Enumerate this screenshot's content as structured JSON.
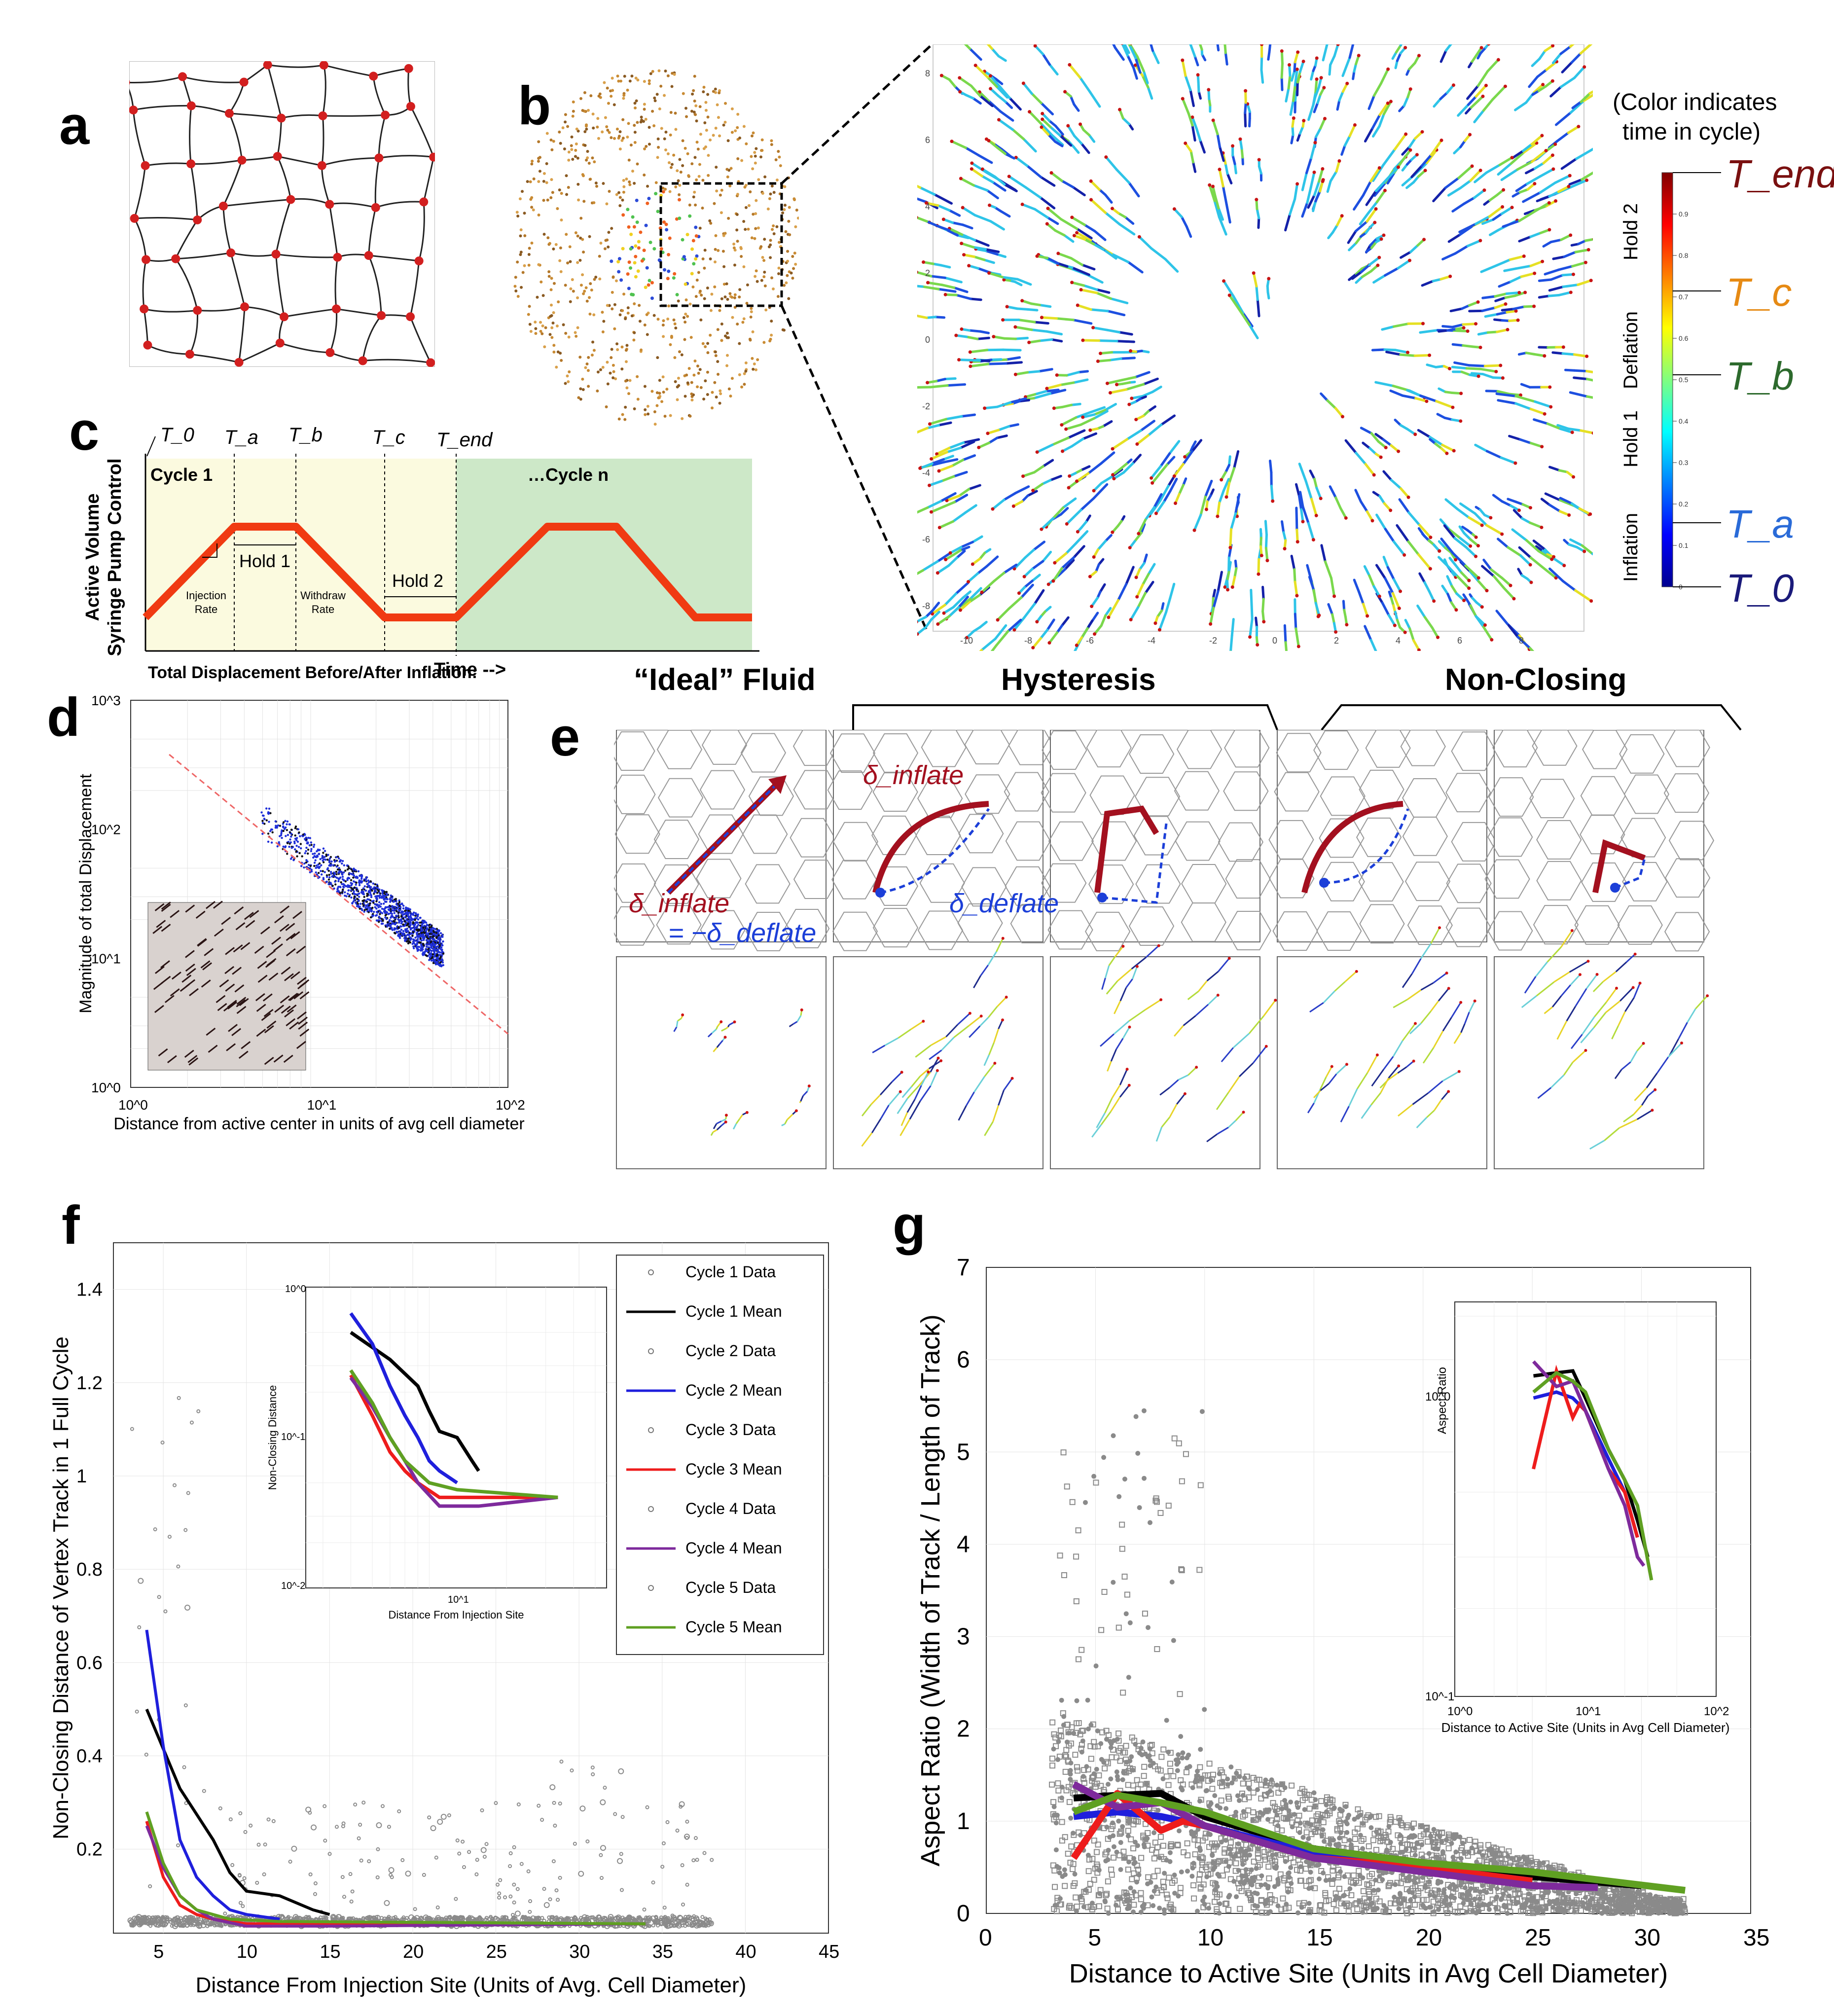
{
  "labels": {
    "a": "a",
    "b": "b",
    "c": "c",
    "d": "d",
    "e": "e",
    "f": "f",
    "g": "g"
  },
  "colors": {
    "cell_edge": "#333333",
    "vertex": "#d21f1f",
    "pump": "#f03a12",
    "green_bg": "#cde8c8",
    "yellow_bg": "#fbfadf",
    "arrow_red": "#a3101f",
    "arrow_blue": "#1c3fd8",
    "gray_pts": "#8a8a8a",
    "black": "#000000",
    "blue": "#1f1fdc",
    "red": "#ee1c1c",
    "purple": "#7e2a9c",
    "green": "#5fa022"
  },
  "panel_b": {
    "note_line1": "(Color indicates",
    "note_line2": "time in cycle)",
    "phase_labels": [
      "Hold 2",
      "Deflation",
      "Hold 1",
      "Inflation"
    ],
    "time_labels": [
      "T_end",
      "T_c",
      "T_b",
      "T_a",
      "T_0"
    ],
    "colorbar_ticks": [
      "0",
      "0.1",
      "0.2",
      "0.3",
      "0.4",
      "0.5",
      "0.6",
      "0.7",
      "0.8",
      "0.9"
    ],
    "x_ticks": [
      "-10",
      "-8",
      "-6",
      "-4",
      "-2",
      "0",
      "2",
      "4",
      "6",
      "8"
    ],
    "y_ticks": [
      "8",
      "6",
      "4",
      "2",
      "0",
      "-2",
      "-4",
      "-6",
      "-8"
    ]
  },
  "panel_c": {
    "time_markers": [
      "T_0",
      "T_a",
      "T_b",
      "T_c",
      "T_end"
    ],
    "cycle1": "Cycle 1",
    "cyclen": "…Cycle n",
    "hold1": "Hold 1",
    "hold2": "Hold 2",
    "injection": [
      "Injection",
      "Rate"
    ],
    "withdraw": [
      "Withdraw",
      "Rate"
    ],
    "ylabel1": "Active Volume",
    "ylabel2": "Syringe Pump Control",
    "xlabel": "Time -->",
    "d_title": "Total Displacement Before/After Inflation:"
  },
  "panel_d": {
    "chart_data": {
      "type": "scatter",
      "ylabel": "Magnitude of total Displacement",
      "xlabel": "Distance from active center in units of avg cell diameter",
      "x_scale": "log",
      "y_scale": "log",
      "xlim": [
        1,
        100
      ],
      "ylim": [
        1,
        1000
      ],
      "x_ticks": [
        "10^0",
        "10^1",
        "10^2"
      ],
      "y_ticks": [
        "10^0",
        "10^1",
        "10^2",
        "10^3"
      ],
      "fit_line": [
        [
          1.6,
          380
        ],
        [
          100,
          2.6
        ]
      ],
      "cloud": [
        [
          6,
          120
        ],
        [
          10,
          70
        ],
        [
          20,
          35
        ],
        [
          40,
          12
        ]
      ]
    }
  },
  "panel_e": {
    "titles": [
      "“Ideal” Fluid",
      "Hysteresis",
      "Non-Closing"
    ],
    "delta_inflate": "δ_inflate",
    "eq": "= −δ_deflate",
    "delta_deflate": "δ_deflate"
  },
  "panel_f": {
    "chart_data": {
      "type": "scatter",
      "ylabel": "Non-Closing Distance of Vertex Track in 1 Full Cycle",
      "xlabel": "Distance From Injection Site (Units of Avg. Cell Diameter)",
      "xlim": [
        2,
        45
      ],
      "ylim": [
        0.02,
        1.5
      ],
      "x_ticks": [
        "5",
        "10",
        "15",
        "20",
        "25",
        "30",
        "35",
        "40",
        "45"
      ],
      "y_ticks": [
        "0.2",
        "0.4",
        "0.6",
        "0.8",
        "1",
        "1.2",
        "1.4"
      ],
      "legend": [
        "Cycle 1 Data",
        "Cycle 1 Mean",
        "Cycle 2 Data",
        "Cycle 2 Mean",
        "Cycle 3 Data",
        "Cycle 3 Mean",
        "Cycle 4 Data",
        "Cycle 4 Mean",
        "Cycle 5 Data",
        "Cycle 5 Mean"
      ],
      "series": [
        {
          "name": "Cycle 1 Mean",
          "color": "#000000",
          "points": [
            [
              4,
              0.5
            ],
            [
              6,
              0.33
            ],
            [
              8,
              0.22
            ],
            [
              9,
              0.15
            ],
            [
              10,
              0.11
            ],
            [
              12,
              0.1
            ],
            [
              14,
              0.07
            ],
            [
              15,
              0.06
            ]
          ]
        },
        {
          "name": "Cycle 2 Mean",
          "color": "#1f1fdc",
          "points": [
            [
              4,
              0.67
            ],
            [
              5,
              0.42
            ],
            [
              6,
              0.22
            ],
            [
              7,
              0.14
            ],
            [
              8,
              0.1
            ],
            [
              9,
              0.07
            ],
            [
              10,
              0.06
            ],
            [
              12,
              0.05
            ]
          ]
        },
        {
          "name": "Cycle 3 Mean",
          "color": "#ee1c1c",
          "points": [
            [
              4,
              0.26
            ],
            [
              5,
              0.14
            ],
            [
              6,
              0.08
            ],
            [
              7,
              0.06
            ],
            [
              8,
              0.05
            ],
            [
              10,
              0.04
            ],
            [
              34,
              0.04
            ]
          ]
        },
        {
          "name": "Cycle 4 Mean",
          "color": "#7e2a9c",
          "points": [
            [
              4,
              0.25
            ],
            [
              5,
              0.16
            ],
            [
              6,
              0.1
            ],
            [
              7,
              0.07
            ],
            [
              8,
              0.05
            ],
            [
              10,
              0.035
            ],
            [
              15,
              0.035
            ],
            [
              34,
              0.04
            ]
          ]
        },
        {
          "name": "Cycle 5 Mean",
          "color": "#5fa022",
          "points": [
            [
              4,
              0.28
            ],
            [
              5,
              0.17
            ],
            [
              6,
              0.1
            ],
            [
              7,
              0.07
            ],
            [
              9,
              0.05
            ],
            [
              12,
              0.045
            ],
            [
              34,
              0.04
            ]
          ]
        }
      ],
      "inset": {
        "ylabel": "Non-Closing Distance",
        "xlabel": "Distance From Injection Site",
        "x_tick": "10^1",
        "y_ticks": [
          "10^0",
          "10^-1",
          "10^-2"
        ]
      }
    }
  },
  "panel_g": {
    "chart_data": {
      "type": "scatter",
      "ylabel": "Aspect Ratio (Width of Track / Length of Track)",
      "xlabel": "Distance to Active Site (Units in Avg Cell Diameter)",
      "xlim": [
        0,
        35
      ],
      "ylim": [
        0,
        7
      ],
      "x_ticks": [
        "0",
        "5",
        "10",
        "15",
        "20",
        "25",
        "30",
        "35"
      ],
      "y_ticks": [
        "0",
        "1",
        "2",
        "3",
        "4",
        "5",
        "6",
        "7"
      ],
      "series": [
        {
          "name": "Cycle 1 Mean",
          "color": "#000000",
          "points": [
            [
              4,
              1.25
            ],
            [
              6,
              1.28
            ],
            [
              8,
              1.3
            ],
            [
              10,
              1.05
            ],
            [
              15,
              0.7
            ],
            [
              20,
              0.55
            ],
            [
              25,
              0.4
            ],
            [
              30,
              0.3
            ]
          ]
        },
        {
          "name": "Cycle 2 Mean",
          "color": "#1f1fdc",
          "points": [
            [
              4,
              1.05
            ],
            [
              6,
              1.1
            ],
            [
              8,
              1.05
            ],
            [
              10,
              0.95
            ],
            [
              15,
              0.65
            ],
            [
              20,
              0.5
            ],
            [
              25,
              0.35
            ]
          ]
        },
        {
          "name": "Cycle 3 Mean",
          "color": "#ee1c1c",
          "points": [
            [
              4,
              0.6
            ],
            [
              6,
              1.3
            ],
            [
              8,
              0.9
            ],
            [
              9,
              1.0
            ],
            [
              10,
              0.95
            ],
            [
              15,
              0.6
            ],
            [
              20,
              0.5
            ],
            [
              25,
              0.35
            ]
          ]
        },
        {
          "name": "Cycle 4 Mean",
          "color": "#7e2a9c",
          "points": [
            [
              4,
              1.4
            ],
            [
              6,
              1.15
            ],
            [
              8,
              1.2
            ],
            [
              10,
              0.95
            ],
            [
              15,
              0.6
            ],
            [
              20,
              0.45
            ],
            [
              25,
              0.3
            ],
            [
              28,
              0.28
            ]
          ]
        },
        {
          "name": "Cycle 5 Mean",
          "color": "#5fa022",
          "points": [
            [
              4,
              1.1
            ],
            [
              6,
              1.28
            ],
            [
              8,
              1.2
            ],
            [
              10,
              1.1
            ],
            [
              15,
              0.7
            ],
            [
              20,
              0.55
            ],
            [
              25,
              0.45
            ],
            [
              32,
              0.25
            ]
          ]
        }
      ],
      "inset": {
        "ylabel": "Aspect Ratio",
        "xlabel": "Distance to Active Site (Units in Avg Cell Diameter)",
        "x_ticks": [
          "10^0",
          "10^1",
          "10^2"
        ],
        "y_ticks": [
          "10^0",
          "10^-1"
        ]
      }
    }
  }
}
